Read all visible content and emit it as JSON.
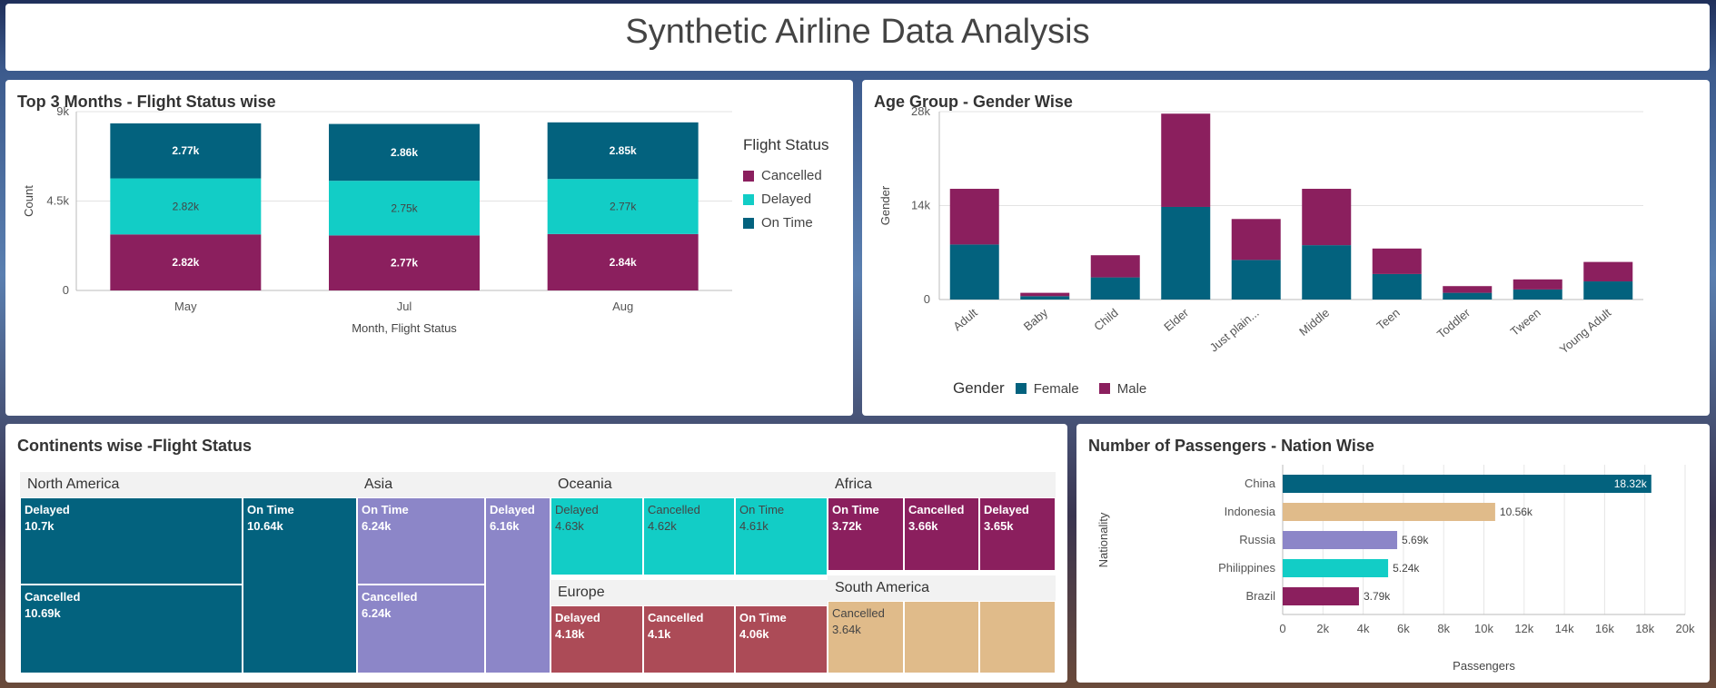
{
  "page": {
    "title": "Synthetic Airline Data Analysis"
  },
  "colors": {
    "cancelled": "#8b1f5e",
    "delayed": "#12cdc6",
    "on_time": "#03627e",
    "female": "#03627e",
    "male": "#8b1f5e",
    "purple": "#8c86c8",
    "tan": "#e0bb8a",
    "rose": "#ac4b57"
  },
  "panels": {
    "months": {
      "title": "Top 3 Months - Flight Status wise"
    },
    "age": {
      "title": "Age Group - Gender Wise"
    },
    "continents": {
      "title": "Continents wise -Flight Status"
    },
    "nation": {
      "title": "Number of Passengers - Nation Wise"
    }
  },
  "chart_data": [
    {
      "type": "bar",
      "stacked": true,
      "title": "Top 3 Months - Flight Status wise",
      "categories": [
        "May",
        "Jul",
        "Aug"
      ],
      "xlabel": "Month, Flight Status",
      "ylabel": "Count",
      "ylim": [
        0,
        9000
      ],
      "yticks": [
        "0",
        "4.5k",
        "9k"
      ],
      "legend": {
        "title": "Flight Status",
        "position": "right"
      },
      "series": [
        {
          "name": "Cancelled",
          "values": [
            2820,
            2770,
            2840
          ],
          "labels": [
            "2.82k",
            "2.77k",
            "2.84k"
          ]
        },
        {
          "name": "Delayed",
          "values": [
            2820,
            2750,
            2770
          ],
          "labels": [
            "2.82k",
            "2.75k",
            "2.77k"
          ]
        },
        {
          "name": "On Time",
          "values": [
            2770,
            2860,
            2850
          ],
          "labels": [
            "2.77k",
            "2.86k",
            "2.85k"
          ]
        }
      ]
    },
    {
      "type": "bar",
      "stacked": true,
      "title": "Age Group - Gender Wise",
      "categories": [
        "Adult",
        "Baby",
        "Child",
        "Elder",
        "Just plain...",
        "Middle",
        "Teen",
        "Toddler",
        "Tween",
        "Young Adult"
      ],
      "ylabel": "Gender",
      "ylim": [
        0,
        28000
      ],
      "yticks": [
        "0",
        "14k",
        "28k"
      ],
      "legend": {
        "title": "Gender",
        "position": "bottom"
      },
      "series": [
        {
          "name": "Female",
          "values": [
            8200,
            500,
            3300,
            13800,
            5900,
            8100,
            3800,
            1000,
            1500,
            2700
          ]
        },
        {
          "name": "Male",
          "values": [
            8300,
            500,
            3300,
            13900,
            6100,
            8400,
            3800,
            1000,
            1500,
            2900
          ]
        }
      ]
    },
    {
      "type": "treemap",
      "title": "Continents wise -Flight Status",
      "groups": [
        {
          "name": "North America",
          "items": [
            {
              "label": "Delayed",
              "value": "10.7k"
            },
            {
              "label": "Cancelled",
              "value": "10.69k"
            },
            {
              "label": "On Time",
              "value": "10.64k"
            }
          ]
        },
        {
          "name": "Asia",
          "items": [
            {
              "label": "On Time",
              "value": "6.24k"
            },
            {
              "label": "Cancelled",
              "value": "6.24k"
            },
            {
              "label": "Delayed",
              "value": "6.16k"
            }
          ]
        },
        {
          "name": "Oceania",
          "items": [
            {
              "label": "Delayed",
              "value": "4.63k"
            },
            {
              "label": "Cancelled",
              "value": "4.62k"
            },
            {
              "label": "On Time",
              "value": "4.61k"
            }
          ]
        },
        {
          "name": "Europe",
          "items": [
            {
              "label": "Delayed",
              "value": "4.18k"
            },
            {
              "label": "Cancelled",
              "value": "4.1k"
            },
            {
              "label": "On Time",
              "value": "4.06k"
            }
          ]
        },
        {
          "name": "Africa",
          "items": [
            {
              "label": "On Time",
              "value": "3.72k"
            },
            {
              "label": "Cancelled",
              "value": "3.66k"
            },
            {
              "label": "Delayed",
              "value": "3.65k"
            }
          ]
        },
        {
          "name": "South America",
          "items": [
            {
              "label": "Cancelled",
              "value": "3.64k"
            },
            {
              "label": "",
              "value": ""
            },
            {
              "label": "",
              "value": ""
            }
          ]
        }
      ]
    },
    {
      "type": "bar",
      "orientation": "horizontal",
      "title": "Number of Passengers - Nation Wise",
      "categories": [
        "China",
        "Indonesia",
        "Russia",
        "Philippines",
        "Brazil"
      ],
      "values": [
        18320,
        10560,
        5690,
        5240,
        3790
      ],
      "labels": [
        "18.32k",
        "10.56k",
        "5.69k",
        "5.24k",
        "3.79k"
      ],
      "xlabel": "Passengers",
      "ylabel": "Nationality",
      "xlim": [
        0,
        20000
      ],
      "xticks": [
        "0",
        "2k",
        "4k",
        "6k",
        "8k",
        "10k",
        "12k",
        "14k",
        "16k",
        "18k",
        "20k"
      ]
    }
  ]
}
